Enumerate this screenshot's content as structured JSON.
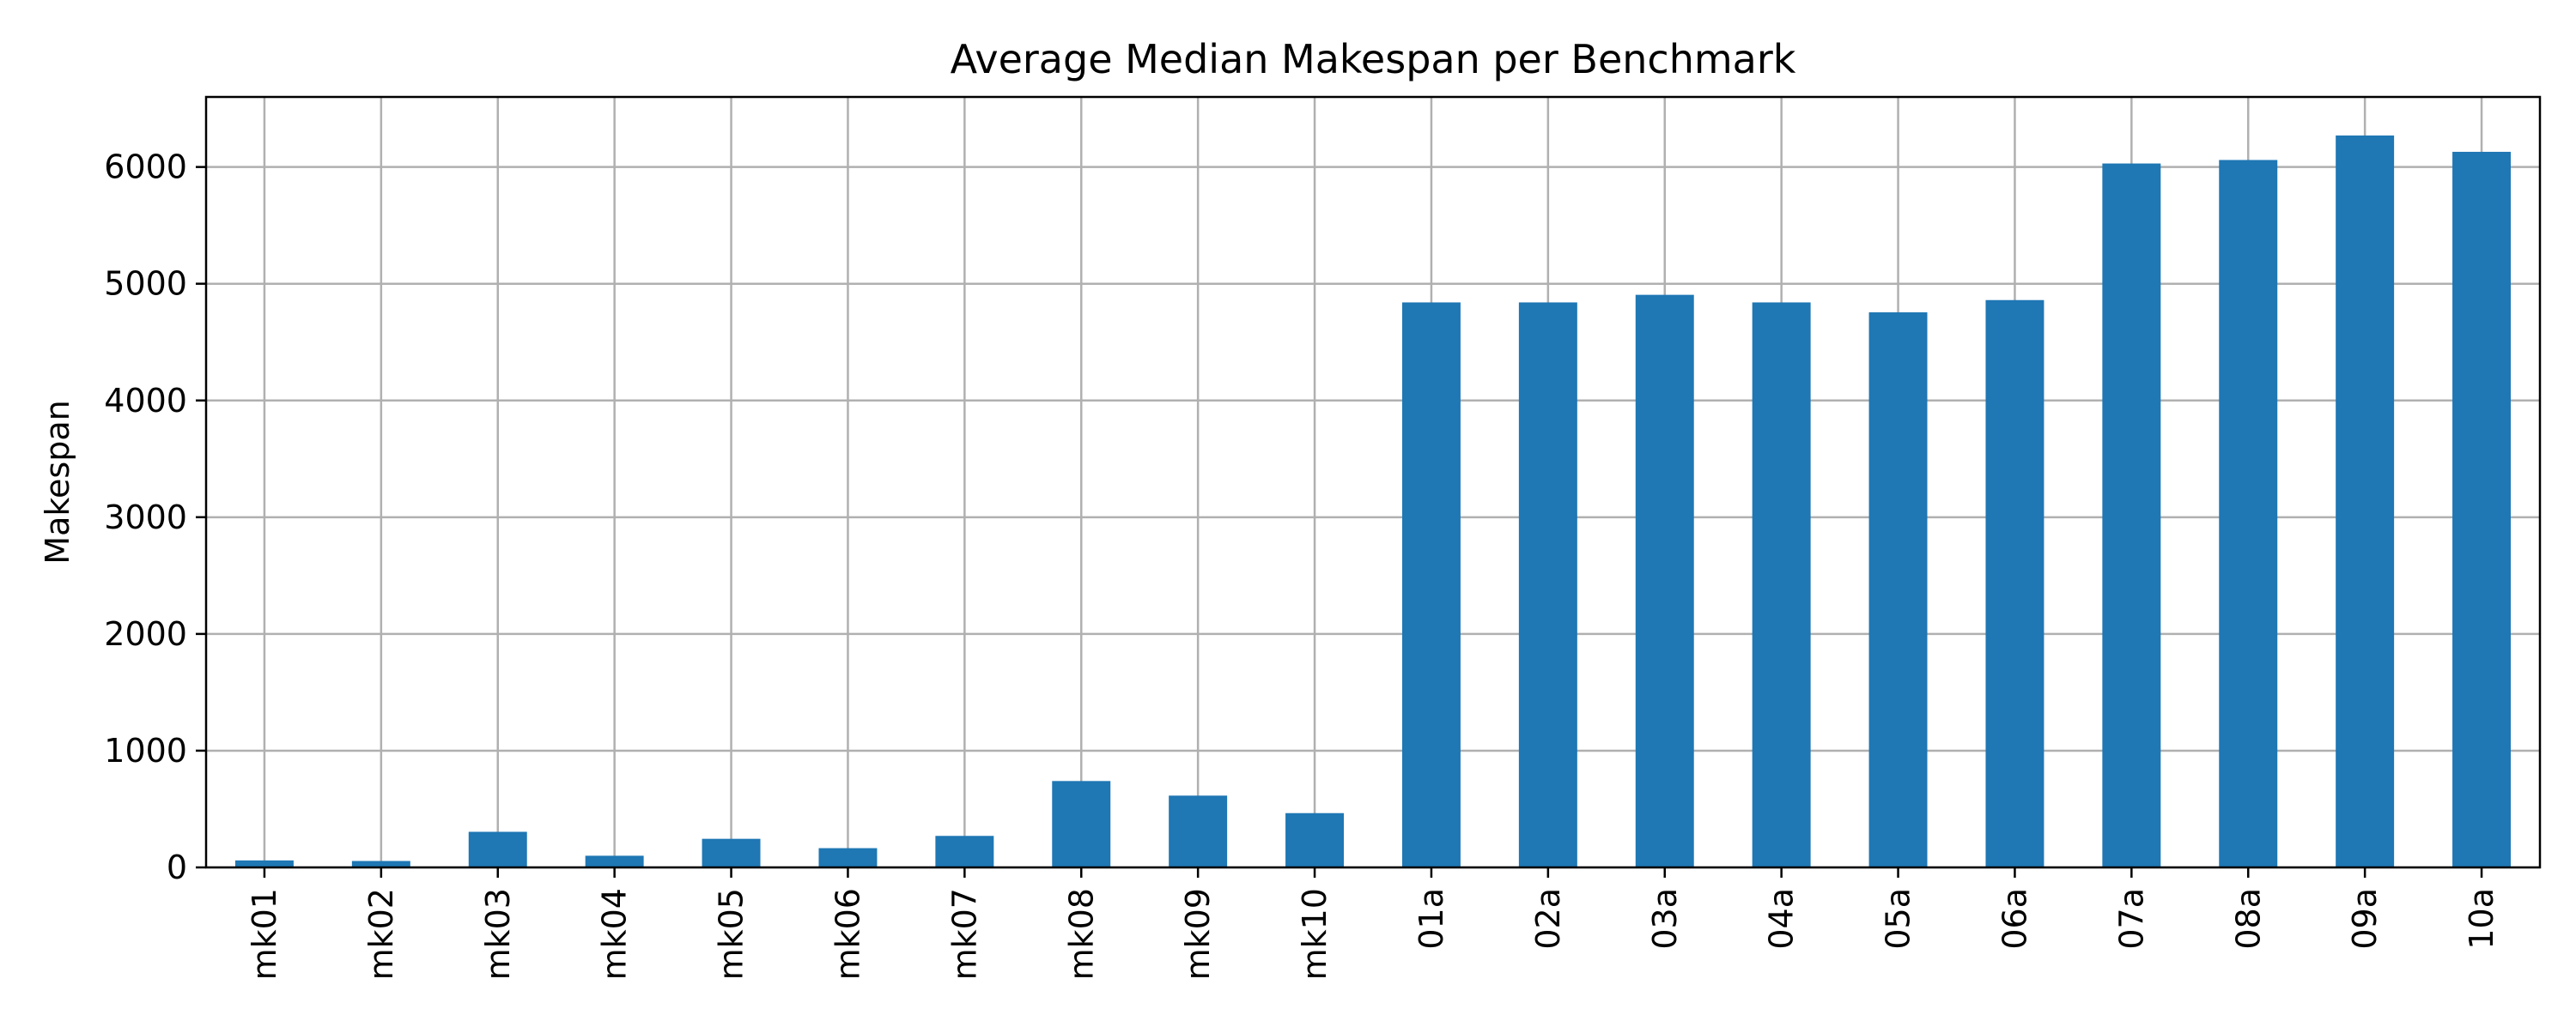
{
  "chart_data": {
    "type": "bar",
    "title": "Average Median Makespan per Benchmark",
    "xlabel": "",
    "ylabel": "Makespan",
    "categories": [
      "mk01",
      "mk02",
      "mk03",
      "mk04",
      "mk05",
      "mk06",
      "mk07",
      "mk08",
      "mk09",
      "mk10",
      "01a",
      "02a",
      "03a",
      "04a",
      "05a",
      "06a",
      "07a",
      "08a",
      "09a",
      "10a"
    ],
    "values": [
      60,
      55,
      305,
      100,
      245,
      165,
      270,
      740,
      615,
      465,
      4840,
      4840,
      4905,
      4840,
      4755,
      4860,
      6030,
      6060,
      6270,
      6130
    ],
    "ylim": [
      0,
      6600
    ],
    "yticks": [
      0,
      1000,
      2000,
      3000,
      4000,
      5000,
      6000
    ],
    "grid": true,
    "bar_color": "#1f77b4",
    "grid_color": "#b0b0b0"
  }
}
